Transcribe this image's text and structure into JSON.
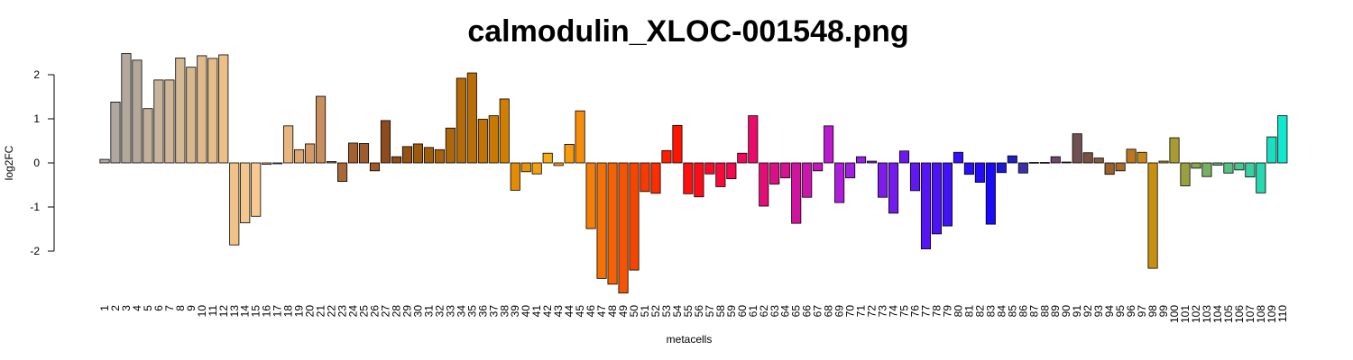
{
  "chart_data": {
    "type": "bar",
    "title": "calmodulin_XLOC-001548.png",
    "xlabel": "metacells",
    "ylabel": "log2FC",
    "yticks": [
      -2,
      -1,
      0,
      1,
      2
    ],
    "ylim": [
      -2.95,
      2.55
    ],
    "grid": false,
    "categories": [
      "1",
      "2",
      "3",
      "4",
      "5",
      "6",
      "7",
      "8",
      "9",
      "10",
      "11",
      "12",
      "13",
      "14",
      "15",
      "16",
      "17",
      "18",
      "19",
      "20",
      "21",
      "22",
      "23",
      "24",
      "25",
      "26",
      "27",
      "28",
      "29",
      "30",
      "31",
      "32",
      "33",
      "34",
      "35",
      "36",
      "37",
      "38",
      "39",
      "40",
      "41",
      "42",
      "43",
      "44",
      "45",
      "46",
      "47",
      "48",
      "49",
      "50",
      "51",
      "52",
      "53",
      "54",
      "55",
      "56",
      "57",
      "58",
      "59",
      "60",
      "61",
      "62",
      "63",
      "64",
      "65",
      "66",
      "67",
      "68",
      "69",
      "70",
      "71",
      "72",
      "73",
      "74",
      "75",
      "76",
      "77",
      "78",
      "79",
      "80",
      "81",
      "82",
      "83",
      "84",
      "85",
      "86",
      "87",
      "88",
      "89",
      "90",
      "91",
      "92",
      "93",
      "94",
      "95",
      "96",
      "97",
      "98",
      "99",
      "100",
      "101",
      "102",
      "103",
      "104",
      "105",
      "106",
      "107",
      "108",
      "109",
      "110"
    ],
    "values": [
      0.08,
      1.38,
      2.48,
      2.33,
      1.23,
      1.88,
      1.88,
      2.38,
      2.17,
      2.43,
      2.37,
      2.45,
      -1.86,
      -1.36,
      -1.21,
      -0.03,
      -0.02,
      0.84,
      0.3,
      0.43,
      1.51,
      0.03,
      -0.42,
      0.45,
      0.44,
      -0.18,
      0.96,
      0.14,
      0.37,
      0.43,
      0.35,
      0.3,
      0.79,
      1.92,
      2.04,
      0.99,
      1.07,
      1.45,
      -0.62,
      -0.2,
      -0.25,
      0.22,
      -0.06,
      0.42,
      1.18,
      -1.49,
      -2.62,
      -2.75,
      -2.95,
      -2.43,
      -0.65,
      -0.69,
      0.28,
      0.85,
      -0.7,
      -0.77,
      -0.25,
      -0.54,
      -0.36,
      0.22,
      1.07,
      -0.98,
      -0.48,
      -0.34,
      -1.37,
      -0.78,
      -0.18,
      0.84,
      -0.9,
      -0.34,
      0.14,
      0.04,
      -0.78,
      -1.14,
      0.27,
      -0.63,
      -1.95,
      -1.61,
      -1.43,
      0.24,
      -0.26,
      -0.44,
      -1.39,
      -0.22,
      0.16,
      -0.23,
      0.01,
      0.01,
      0.14,
      0.02,
      0.66,
      0.23,
      0.11,
      -0.26,
      -0.18,
      0.31,
      0.24,
      -2.39,
      0.04,
      0.57,
      -0.52,
      -0.12,
      -0.31,
      -0.05,
      -0.23,
      -0.16,
      -0.32,
      -0.68,
      0.59,
      1.07
    ],
    "colors": [
      "#b5aa9c",
      "#b0a89e",
      "#b2a99c",
      "#b3a89a",
      "#c3b09a",
      "#c8b49c",
      "#d0b696",
      "#d6b892",
      "#d9b88e",
      "#e0ba8c",
      "#e6bc88",
      "#ebbf87",
      "#f0c288",
      "#f3c68e",
      "#f7c990",
      "#f4c48a",
      "#eebe86",
      "#e8b680",
      "#dea874",
      "#d39a66",
      "#c88e5e",
      "#b8784a",
      "#a8693a",
      "#a06032",
      "#9c5c2e",
      "#9a5a2a",
      "#8c4c1e",
      "#8e4e18",
      "#965210",
      "#9c5a0e",
      "#a25e0c",
      "#a8620c",
      "#ae660a",
      "#b46a08",
      "#ba6e08",
      "#c07206",
      "#c87804",
      "#d07e02",
      "#e08c04",
      "#e89408",
      "#f0a010",
      "#f6aa14",
      "#f6a412",
      "#f69a0e",
      "#f58c0a",
      "#f57e08",
      "#f57006",
      "#f56204",
      "#f55402",
      "#f54600",
      "#f83a00",
      "#fa2e00",
      "#fc2000",
      "#fe1400",
      "#ff1010",
      "#fe0c1c",
      "#fb0a2c",
      "#f80a3c",
      "#f40a4c",
      "#ee0a5a",
      "#e80c68",
      "#e20e76",
      "#dc1084",
      "#d61292",
      "#d014a0",
      "#ca16ae",
      "#c418bc",
      "#b81ccc",
      "#ac1ed8",
      "#a020e0",
      "#9420e8",
      "#8a1ee8",
      "#7e1cea",
      "#741cec",
      "#6a1aee",
      "#6018f0",
      "#5616f2",
      "#4c14f4",
      "#4212f6",
      "#3810f8",
      "#2e0ef8",
      "#240cf8",
      "#1a0af8",
      "#1a18d8",
      "#2020c0",
      "#3a30a8",
      "#503a90",
      "#604278",
      "#6a4a6a",
      "#6e5060",
      "#705050",
      "#7a5040",
      "#8a5838",
      "#9a6030",
      "#aa6c28",
      "#ba7820",
      "#c88818",
      "#c89010",
      "#b89a20",
      "#a89c30",
      "#98a040",
      "#88a850",
      "#78b060",
      "#68b870",
      "#58c080",
      "#48c890",
      "#38d0a0",
      "#28d8b0",
      "#18e0c0",
      "#10e8d0"
    ]
  }
}
